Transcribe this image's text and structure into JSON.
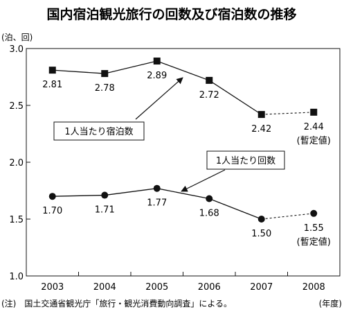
{
  "title": "国内宿泊観光旅行の回数及び宿泊数の推移",
  "note": "(注)　国土交通省観光庁「旅行・観光消費動向調査」による。",
  "chart_data": {
    "type": "line",
    "title": "国内宿泊観光旅行の回数及び宿泊数の推移",
    "ylabel": "(泊、回)",
    "xlabel": "(年度)",
    "x": [
      "2003",
      "2004",
      "2005",
      "2006",
      "2007",
      "2008"
    ],
    "ylim": [
      1.0,
      3.0
    ],
    "yticks": [
      1.0,
      1.5,
      2.0,
      2.5,
      3.0
    ],
    "ytick_labels": [
      "1.0",
      "1.5",
      "2.0",
      "2.5",
      "3.0"
    ],
    "grid": false,
    "series": [
      {
        "name": "1人当たり宿泊数",
        "values": [
          2.81,
          2.78,
          2.89,
          2.72,
          2.42,
          2.44
        ],
        "labels": [
          "2.81",
          "2.78",
          "2.89",
          "2.72",
          "2.42",
          "2.44"
        ],
        "marker": "square",
        "provisional_label": "(暫定値)"
      },
      {
        "name": "1人当たり回数",
        "values": [
          1.7,
          1.71,
          1.77,
          1.68,
          1.5,
          1.55
        ],
        "labels": [
          "1.70",
          "1.71",
          "1.77",
          "1.68",
          "1.50",
          "1.55"
        ],
        "marker": "circle",
        "provisional_label": "(暫定値)"
      }
    ],
    "provisional_from_index": 5
  }
}
